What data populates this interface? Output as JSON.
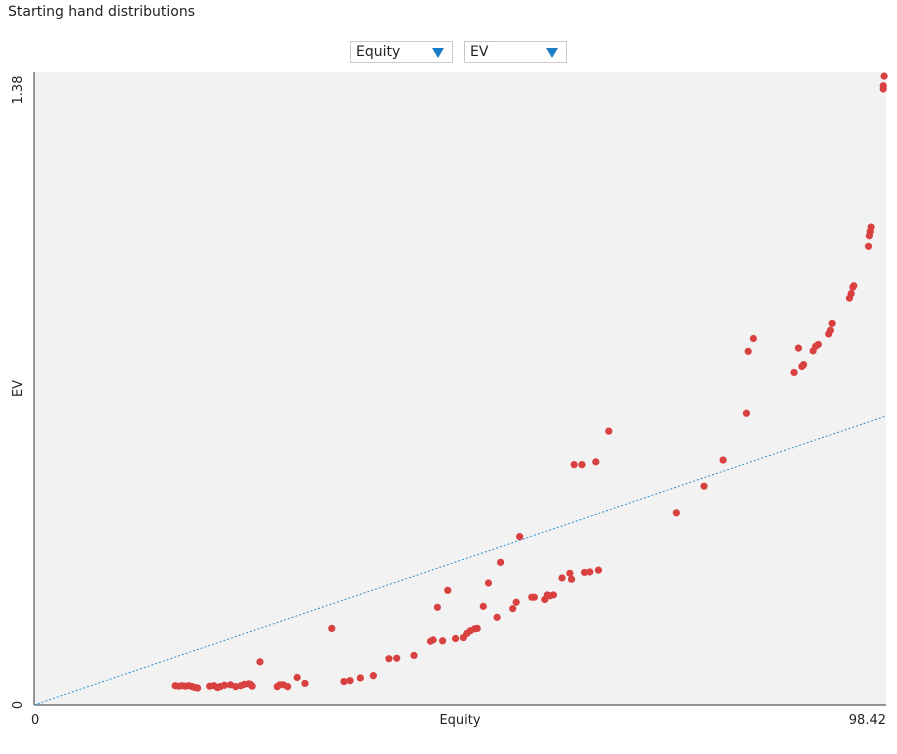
{
  "title": "Starting hand distributions",
  "controls": {
    "x_select": "Equity",
    "y_select": "EV"
  },
  "colors": {
    "point": "#d94040",
    "reference_line": "#2a8fd0",
    "plot_background": "#f3f2f2",
    "selector_arrow": "#1a7cc6"
  },
  "chart_data": {
    "type": "scatter",
    "title": "Starting hand distributions",
    "xlabel": "Equity",
    "ylabel": "EV",
    "xlim": [
      0,
      98.42
    ],
    "ylim": [
      0,
      1.38
    ],
    "x_tick_labels": [
      "0",
      "98.42"
    ],
    "y_tick_labels": [
      "0",
      "1.38"
    ],
    "grid": false,
    "reference_line": {
      "from": [
        0,
        0
      ],
      "to": [
        98.42,
        0.63
      ],
      "style": "dotted"
    },
    "points": [
      [
        16.3,
        0.042
      ],
      [
        16.7,
        0.041
      ],
      [
        17.1,
        0.042
      ],
      [
        17.5,
        0.041
      ],
      [
        17.9,
        0.042
      ],
      [
        18.3,
        0.04
      ],
      [
        18.6,
        0.038
      ],
      [
        18.9,
        0.037
      ],
      [
        20.3,
        0.041
      ],
      [
        20.8,
        0.042
      ],
      [
        21.2,
        0.038
      ],
      [
        21.5,
        0.04
      ],
      [
        22.0,
        0.043
      ],
      [
        22.7,
        0.044
      ],
      [
        23.3,
        0.04
      ],
      [
        23.9,
        0.042
      ],
      [
        24.3,
        0.045
      ],
      [
        24.8,
        0.046
      ],
      [
        25.0,
        0.045
      ],
      [
        25.2,
        0.041
      ],
      [
        26.1,
        0.094
      ],
      [
        28.1,
        0.04
      ],
      [
        28.4,
        0.044
      ],
      [
        28.8,
        0.044
      ],
      [
        29.3,
        0.04
      ],
      [
        30.4,
        0.06
      ],
      [
        31.3,
        0.047
      ],
      [
        34.4,
        0.167
      ],
      [
        35.8,
        0.051
      ],
      [
        36.5,
        0.053
      ],
      [
        37.7,
        0.059
      ],
      [
        39.2,
        0.064
      ],
      [
        41.0,
        0.101
      ],
      [
        41.9,
        0.102
      ],
      [
        43.9,
        0.108
      ],
      [
        45.8,
        0.139
      ],
      [
        46.1,
        0.142
      ],
      [
        46.6,
        0.213
      ],
      [
        47.2,
        0.14
      ],
      [
        47.8,
        0.25
      ],
      [
        48.7,
        0.145
      ],
      [
        49.6,
        0.147
      ],
      [
        50.0,
        0.156
      ],
      [
        50.4,
        0.162
      ],
      [
        50.9,
        0.166
      ],
      [
        51.2,
        0.167
      ],
      [
        51.9,
        0.215
      ],
      [
        52.5,
        0.266
      ],
      [
        53.5,
        0.191
      ],
      [
        53.9,
        0.311
      ],
      [
        55.3,
        0.21
      ],
      [
        55.7,
        0.224
      ],
      [
        56.1,
        0.367
      ],
      [
        57.5,
        0.235
      ],
      [
        57.8,
        0.235
      ],
      [
        59.0,
        0.23
      ],
      [
        59.3,
        0.24
      ],
      [
        59.6,
        0.238
      ],
      [
        60.0,
        0.24
      ],
      [
        61.0,
        0.277
      ],
      [
        61.9,
        0.287
      ],
      [
        62.1,
        0.274
      ],
      [
        62.4,
        0.524
      ],
      [
        63.3,
        0.524
      ],
      [
        63.6,
        0.289
      ],
      [
        64.2,
        0.29
      ],
      [
        64.9,
        0.53
      ],
      [
        65.2,
        0.294
      ],
      [
        66.4,
        0.597
      ],
      [
        74.2,
        0.419
      ],
      [
        77.4,
        0.477
      ],
      [
        79.6,
        0.534
      ],
      [
        82.3,
        0.636
      ],
      [
        82.5,
        0.771
      ],
      [
        83.1,
        0.799
      ],
      [
        87.8,
        0.725
      ],
      [
        88.3,
        0.778
      ],
      [
        88.7,
        0.738
      ],
      [
        88.9,
        0.742
      ],
      [
        90.0,
        0.772
      ],
      [
        90.3,
        0.782
      ],
      [
        90.6,
        0.786
      ],
      [
        91.8,
        0.809
      ],
      [
        92.0,
        0.817
      ],
      [
        92.2,
        0.832
      ],
      [
        94.2,
        0.887
      ],
      [
        94.4,
        0.897
      ],
      [
        94.6,
        0.911
      ],
      [
        94.7,
        0.914
      ],
      [
        96.4,
        1.0
      ],
      [
        96.5,
        1.023
      ],
      [
        96.6,
        1.032
      ],
      [
        96.7,
        1.042
      ],
      [
        98.1,
        1.343
      ],
      [
        98.1,
        1.35
      ],
      [
        98.2,
        1.371
      ]
    ]
  }
}
